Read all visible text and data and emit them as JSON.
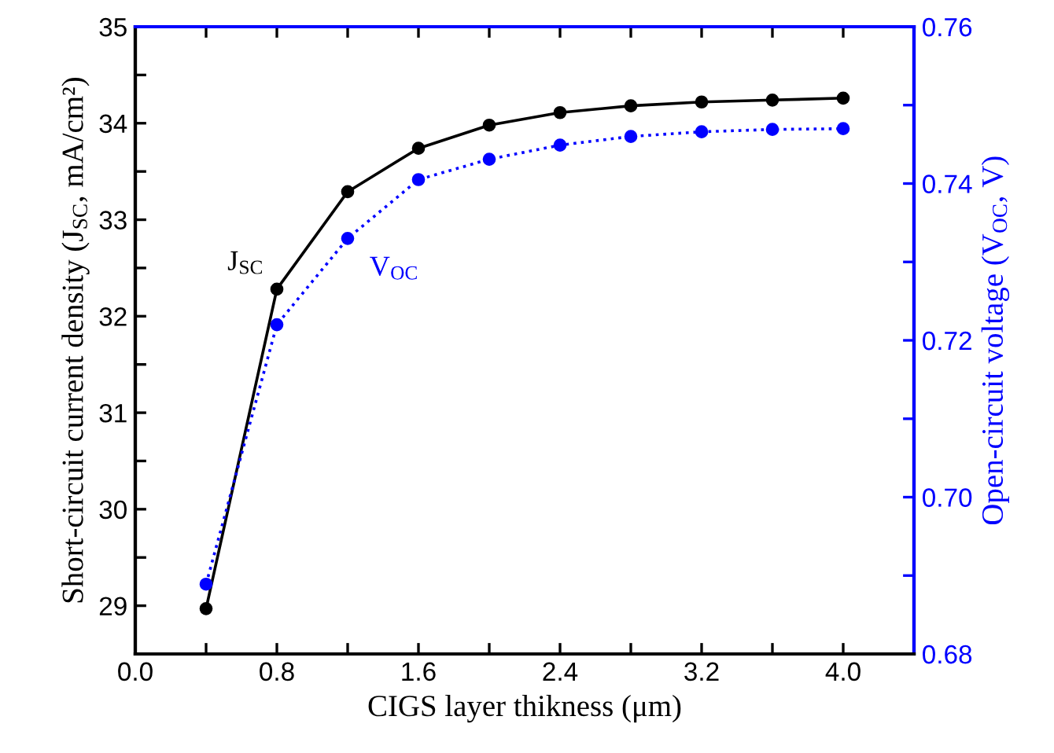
{
  "chart_data": {
    "type": "line",
    "xlabel": "CIGS layer thikness (μm)",
    "ylabel": "Short-circuit current density (J$_{SC}$, mA/cm²)",
    "y2label": "Open-circuit voltage (V$_{OC}$, V)",
    "x": [
      0.4,
      0.8,
      1.2,
      1.6,
      2.0,
      2.4,
      2.8,
      3.2,
      3.6,
      4.0
    ],
    "series": [
      {
        "name": "J$_{SC}$",
        "color": "#000000",
        "line_style": "solid",
        "values": [
          28.97,
          32.28,
          33.29,
          33.74,
          33.98,
          34.11,
          34.18,
          34.22,
          34.24,
          34.26
        ]
      },
      {
        "name": "V$_{OC}$",
        "color": "#0000ff",
        "line_style": "dotted",
        "axis": "y2",
        "values": [
          0.6889,
          0.722,
          0.733,
          0.7405,
          0.7431,
          0.7449,
          0.746,
          0.7466,
          0.7469,
          0.747
        ]
      }
    ],
    "marker": "circle",
    "xlim": [
      0.0,
      4.4
    ],
    "xticks": [
      {
        "value": 0.0,
        "label": "0.0"
      },
      {
        "value": 0.4,
        "label": null
      },
      0.8,
      {
        "value": 1.2,
        "label": null
      },
      1.6,
      {
        "value": 2.0,
        "label": null
      },
      2.4,
      {
        "value": 2.8,
        "label": null
      },
      3.2,
      {
        "value": 3.6,
        "label": null
      },
      {
        "value": 4.0,
        "label": "4.0"
      }
    ],
    "ylim": [
      28.5,
      35
    ],
    "yticks": [
      29,
      {
        "value": 29.5,
        "label": null
      },
      30,
      {
        "value": 30.5,
        "label": null
      },
      31,
      {
        "value": 31.5,
        "label": null
      },
      32,
      {
        "value": 32.5,
        "label": null
      },
      33,
      {
        "value": 33.5,
        "label": null
      },
      34,
      {
        "value": 34.5,
        "label": null
      },
      35
    ],
    "y2lim": [
      0.68,
      0.76
    ],
    "y2ticks": [
      {
        "value": 0.68,
        "label": "0.68"
      },
      {
        "value": 0.69,
        "label": null
      },
      {
        "value": 0.7,
        "label": "0.70"
      },
      {
        "value": 0.71,
        "label": null
      },
      {
        "value": 0.72,
        "label": "0.72"
      },
      {
        "value": 0.73,
        "label": null
      },
      {
        "value": 0.74,
        "label": "0.74"
      },
      {
        "value": 0.75,
        "label": null
      },
      {
        "value": 0.76,
        "label": "0.76"
      }
    ],
    "grid": false,
    "legend": false
  }
}
